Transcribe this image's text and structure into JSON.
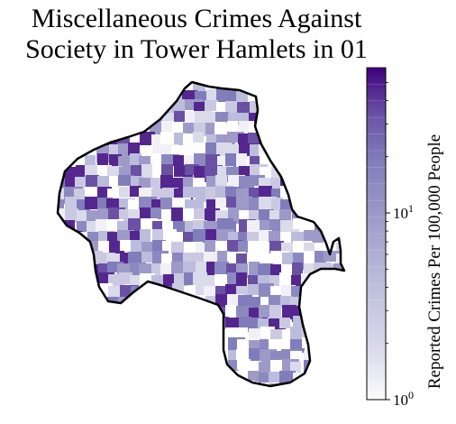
{
  "title": {
    "line1": "Miscellaneous Crimes Against",
    "line2": "Society in Tower Hamlets in 01"
  },
  "colorbar": {
    "label": "Reported Crimes Per 100,000 People",
    "scale": "log",
    "range": [
      1,
      60
    ],
    "ticks": [
      {
        "value": 1,
        "base": "10",
        "exp": "0"
      },
      {
        "value": 10,
        "base": "10",
        "exp": "1"
      }
    ],
    "colormap": "Purples",
    "color_low": "#fcfbfd",
    "color_high": "#3f007d"
  },
  "map": {
    "region": "Tower Hamlets",
    "outline_color": "#000000"
  }
}
